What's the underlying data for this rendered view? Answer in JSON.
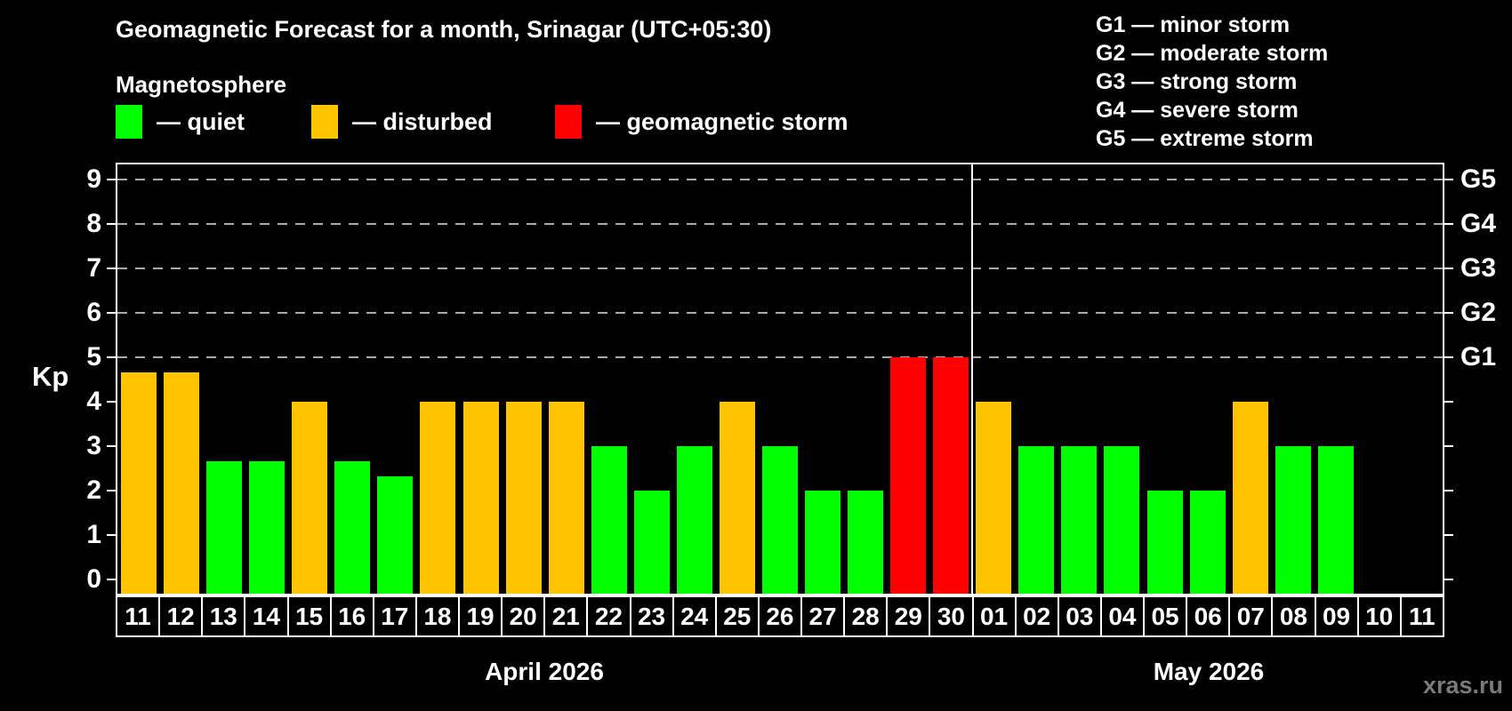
{
  "header": {
    "title": "Geomagnetic Forecast for a month, Srinagar (UTC+05:30)",
    "subtitle": "Magnetosphere"
  },
  "legend": {
    "items": [
      {
        "name": "quiet",
        "label": "— quiet",
        "color": "#00FF00"
      },
      {
        "name": "disturbed",
        "label": "— disturbed",
        "color": "#FFC400"
      },
      {
        "name": "storm",
        "label": "— geomagnetic storm",
        "color": "#FF0000"
      }
    ]
  },
  "g_scale": [
    "G1 — minor storm",
    "G2 — moderate storm",
    "G3 — strong storm",
    "G4 — severe storm",
    "G5 — extreme storm"
  ],
  "watermark": "xras.ru",
  "chart_data": {
    "type": "bar",
    "title": "Geomagnetic Forecast for a month, Srinagar (UTC+05:30)",
    "ylabel": "Kp",
    "ylim": [
      0,
      9.4
    ],
    "y_ticks": [
      0,
      1,
      2,
      3,
      4,
      5,
      6,
      7,
      8,
      9
    ],
    "gridlines_at": [
      5,
      6,
      7,
      8,
      9
    ],
    "grid": "dashed",
    "legend_position": "top",
    "right_axis": [
      {
        "label": "G1",
        "kp": 5
      },
      {
        "label": "G2",
        "kp": 6
      },
      {
        "label": "G3",
        "kp": 7
      },
      {
        "label": "G4",
        "kp": 8
      },
      {
        "label": "G5",
        "kp": 9
      }
    ],
    "months": [
      {
        "label": "April 2026",
        "count": 20
      },
      {
        "label": "May 2026",
        "count": 11
      }
    ],
    "colors": {
      "quiet": "#00FF00",
      "disturbed": "#FFC400",
      "storm": "#FF0000"
    },
    "bars": [
      {
        "day": "11",
        "kp": 4.67,
        "status": "disturbed"
      },
      {
        "day": "12",
        "kp": 4.67,
        "status": "disturbed"
      },
      {
        "day": "13",
        "kp": 2.67,
        "status": "quiet"
      },
      {
        "day": "14",
        "kp": 2.67,
        "status": "quiet"
      },
      {
        "day": "15",
        "kp": 4.0,
        "status": "disturbed"
      },
      {
        "day": "16",
        "kp": 2.67,
        "status": "quiet"
      },
      {
        "day": "17",
        "kp": 2.33,
        "status": "quiet"
      },
      {
        "day": "18",
        "kp": 4.0,
        "status": "disturbed"
      },
      {
        "day": "19",
        "kp": 4.0,
        "status": "disturbed"
      },
      {
        "day": "20",
        "kp": 4.0,
        "status": "disturbed"
      },
      {
        "day": "21",
        "kp": 4.0,
        "status": "disturbed"
      },
      {
        "day": "22",
        "kp": 3.0,
        "status": "quiet"
      },
      {
        "day": "23",
        "kp": 2.0,
        "status": "quiet"
      },
      {
        "day": "24",
        "kp": 3.0,
        "status": "quiet"
      },
      {
        "day": "25",
        "kp": 4.0,
        "status": "disturbed"
      },
      {
        "day": "26",
        "kp": 3.0,
        "status": "quiet"
      },
      {
        "day": "27",
        "kp": 2.0,
        "status": "quiet"
      },
      {
        "day": "28",
        "kp": 2.0,
        "status": "quiet"
      },
      {
        "day": "29",
        "kp": 5.0,
        "status": "storm"
      },
      {
        "day": "30",
        "kp": 5.0,
        "status": "storm"
      },
      {
        "day": "01",
        "kp": 4.0,
        "status": "disturbed"
      },
      {
        "day": "02",
        "kp": 3.0,
        "status": "quiet"
      },
      {
        "day": "03",
        "kp": 3.0,
        "status": "quiet"
      },
      {
        "day": "04",
        "kp": 3.0,
        "status": "quiet"
      },
      {
        "day": "05",
        "kp": 2.0,
        "status": "quiet"
      },
      {
        "day": "06",
        "kp": 2.0,
        "status": "quiet"
      },
      {
        "day": "07",
        "kp": 4.0,
        "status": "disturbed"
      },
      {
        "day": "08",
        "kp": 3.0,
        "status": "quiet"
      },
      {
        "day": "09",
        "kp": 3.0,
        "status": "quiet"
      },
      {
        "day": "10",
        "kp": 0,
        "status": "none"
      },
      {
        "day": "11",
        "kp": 0,
        "status": "none"
      }
    ]
  }
}
